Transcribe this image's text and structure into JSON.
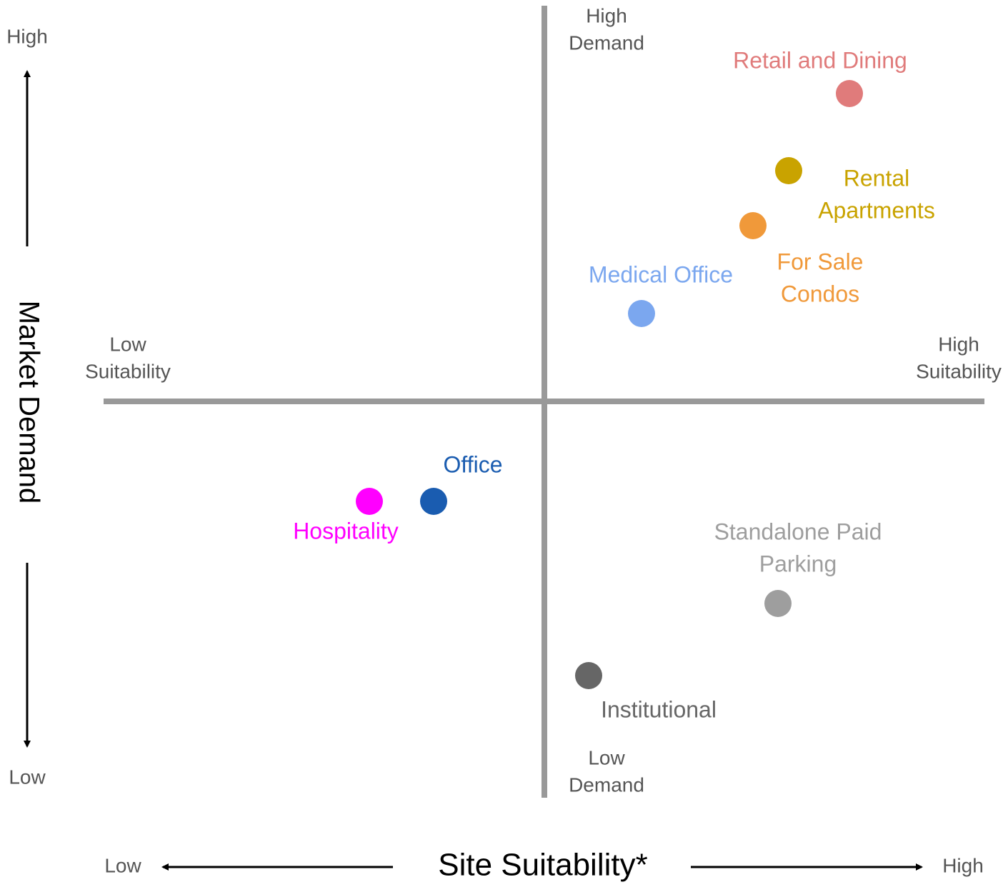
{
  "vertical_axis": {
    "title": "Market Demand",
    "high": "High",
    "low": "Low"
  },
  "horizontal_axis": {
    "title": "Site Suitability*",
    "high": "High",
    "low": "Low"
  },
  "quadrant_labels": {
    "top": [
      "High",
      "Demand"
    ],
    "bottom": [
      "Low",
      "Demand"
    ],
    "left": [
      "Low",
      "Suitability"
    ],
    "right": [
      "High",
      "Suitability"
    ]
  },
  "nodes": [
    {
      "label": [
        "Retail and Dining"
      ],
      "color": "#e07b7b"
    },
    {
      "label": [
        "Rental",
        "Apartments"
      ],
      "color": "#c9a300"
    },
    {
      "label": [
        "For Sale",
        "Condos"
      ],
      "color": "#f0993a"
    },
    {
      "label": [
        "Medical Office"
      ],
      "color": "#7ba7ef"
    },
    {
      "label": [
        "Office"
      ],
      "color": "#1a5cb0"
    },
    {
      "label": [
        "Hospitality"
      ],
      "color": "#ff00ff"
    },
    {
      "label": [
        "Standalone Paid",
        "Parking"
      ],
      "color": "#9e9e9e"
    },
    {
      "label": [
        "Institutional"
      ],
      "color": "#666666"
    }
  ]
}
